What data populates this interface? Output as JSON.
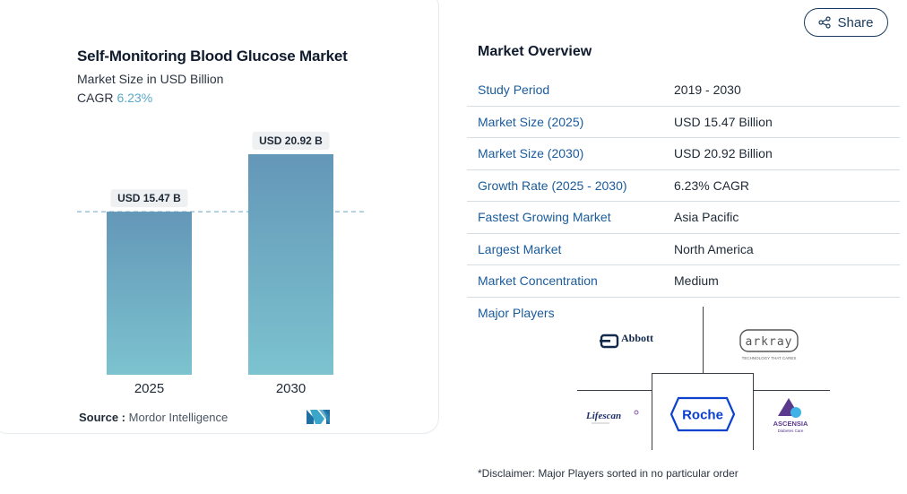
{
  "chart": {
    "title": "Self-Monitoring Blood Glucose Market",
    "subtitle": "Market Size in USD Billion",
    "cagr_label": "CAGR",
    "cagr_value": "6.23%",
    "source_label": "Source :",
    "source_value": "Mordor Intelligence",
    "colors": {
      "bar_top": "#6497b8",
      "bar_bottom": "#7cc3cf",
      "label_bg": "#eef0f2",
      "dashed": "#6aa5c5"
    }
  },
  "chart_data": {
    "type": "bar",
    "categories": [
      "2025",
      "2030"
    ],
    "values": [
      15.47,
      20.92
    ],
    "data_labels": [
      "USD 15.47 B",
      "USD 20.92 B"
    ],
    "title": "Self-Monitoring Blood Glucose Market",
    "ylabel": "Market Size in USD Billion",
    "ylim": [
      0,
      20.92
    ],
    "grid": false,
    "reference_line_at": 15.47
  },
  "share": {
    "label": "Share",
    "icon": "share-icon"
  },
  "overview": {
    "title": "Market Overview",
    "rows": [
      {
        "label": "Study Period",
        "value": "2019 - 2030"
      },
      {
        "label": "Market Size (2025)",
        "value": "USD 15.47 Billion"
      },
      {
        "label": "Market Size (2030)",
        "value": "USD 20.92 Billion"
      },
      {
        "label": "Growth Rate (2025 - 2030)",
        "value": "6.23% CAGR"
      },
      {
        "label": "Fastest Growing Market",
        "value": "Asia Pacific"
      },
      {
        "label": "Largest Market",
        "value": "North America"
      },
      {
        "label": "Market Concentration",
        "value": "Medium"
      }
    ],
    "major_players_label": "Major Players",
    "players": [
      {
        "name": "Abbott",
        "icon": "abbott-logo"
      },
      {
        "name": "arkray",
        "tagline": "TECHNOLOGY THAT CARES",
        "icon": "arkray-logo"
      },
      {
        "name": "Roche",
        "icon": "roche-logo"
      },
      {
        "name": "Lifescan",
        "icon": "lifescan-logo"
      },
      {
        "name": "ASCENSIA",
        "tagline": "Diabetes Care",
        "icon": "ascensia-logo"
      }
    ],
    "disclaimer": "*Disclaimer: Major Players sorted in no particular order"
  }
}
